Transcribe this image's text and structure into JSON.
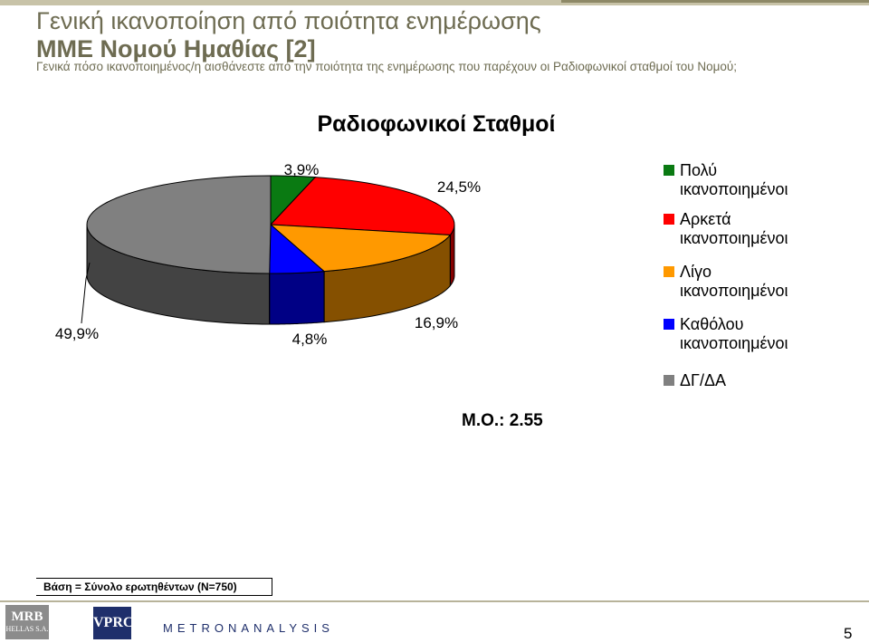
{
  "header": {
    "title_line1": "Γενική ικανοποίηση από ποιότητα ενημέρωσης",
    "title_line2": "ΜΜΕ Νομού Ημαθίας [2]",
    "subtitle": "Γενικά πόσο ικανοποιημένος/η αισθάνεστε από την ποιότητα της ενημέρωσης που παρέχουν οι Ραδιοφωνικοί  σταθμοί του Νομού;"
  },
  "chart_data": {
    "type": "pie",
    "title": "Ραδιοφωνικοί Σταθμοί",
    "categories": [
      "Πολύ ικανοποιημένοι",
      "Αρκετά ικανοποιημένοι",
      "Λίγο ικανοποιημένοι",
      "Καθόλου ικανοποιημένοι",
      "ΔΓ/ΔΑ"
    ],
    "values": [
      3.9,
      24.5,
      16.9,
      4.8,
      49.9
    ],
    "labels": [
      "3,9%",
      "24,5%",
      "16,9%",
      "4,8%",
      "49,9%"
    ],
    "colors": [
      "#0a7a12",
      "#ff0000",
      "#ff9900",
      "#0000ff",
      "#808080"
    ],
    "legend_lines": [
      [
        "Πολύ",
        "ικανοποιημένοι"
      ],
      [
        "Αρκετά",
        "ικανοποιημένοι"
      ],
      [
        "Λίγο",
        "ικανοποιημένοι"
      ],
      [
        "Καθόλου",
        "ικανοποιημένοι"
      ],
      [
        "ΔΓ/ΔΑ"
      ]
    ],
    "legend_position": "right",
    "style": "3d-pie"
  },
  "mean_label": "Μ.Ο.: 2.55",
  "footer": {
    "base_note": "Βάση = Σύνολο ερωτηθέντων (Ν=750)",
    "logo_mrb": "MRB",
    "logo_mrb_sub": "HELLAS S.A.",
    "logo_vprc": "VPRC",
    "logo_metron": "METRONANALYSIS",
    "page_number": "5"
  }
}
